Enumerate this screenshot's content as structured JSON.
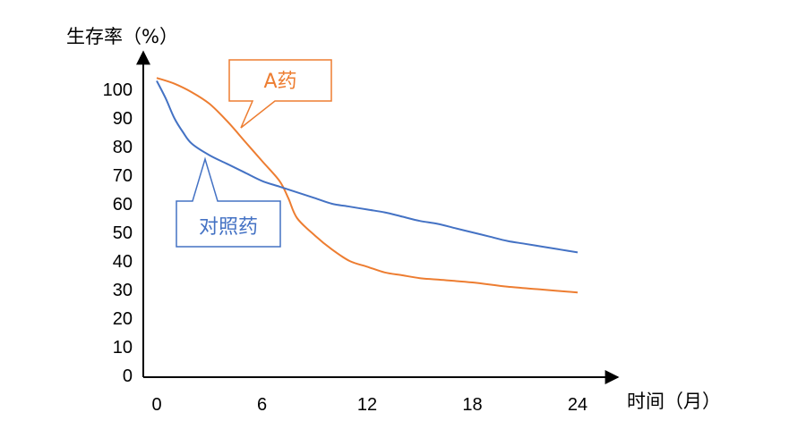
{
  "chart_data": {
    "type": "line",
    "ylabel": "生存率（%）",
    "xlabel": "时间（月）",
    "xlim": [
      0,
      24
    ],
    "ylim": [
      0,
      100
    ],
    "x_ticks": [
      "0",
      "6",
      "12",
      "18",
      "24"
    ],
    "y_ticks": [
      "0",
      "10",
      "20",
      "30",
      "40",
      "50",
      "60",
      "70",
      "80",
      "90",
      "100"
    ],
    "grid": false,
    "series": [
      {
        "name": "A药",
        "color": "#ED7D31",
        "x": [
          0,
          1,
          2,
          3,
          4,
          5,
          6,
          7,
          7.5,
          8,
          9,
          10,
          11,
          12,
          13,
          14,
          15,
          16,
          18,
          20,
          22,
          24
        ],
        "y": [
          104,
          102,
          99,
          95,
          89,
          82,
          75,
          68,
          62,
          55,
          49,
          44,
          40,
          38,
          36,
          35,
          34,
          33.5,
          32.5,
          31,
          30,
          29
        ]
      },
      {
        "name": "对照药",
        "color": "#4472C4",
        "x": [
          0,
          0.5,
          1,
          1.5,
          2,
          3,
          4,
          5,
          6,
          7,
          8,
          9,
          10,
          11,
          12,
          13,
          14,
          15,
          16,
          17,
          18,
          19,
          20,
          21,
          22,
          23,
          24
        ],
        "y": [
          103,
          97,
          90,
          85,
          81,
          77,
          74,
          71,
          68,
          66,
          64,
          62,
          60,
          59,
          58,
          57,
          55.5,
          54,
          53,
          51.5,
          50,
          48.5,
          47,
          46,
          45,
          44,
          43
        ]
      }
    ],
    "callouts": [
      {
        "series": "A药",
        "text": "A药",
        "color": "#ED7D31"
      },
      {
        "series": "对照药",
        "text": "对照药",
        "color": "#4472C4"
      }
    ]
  }
}
